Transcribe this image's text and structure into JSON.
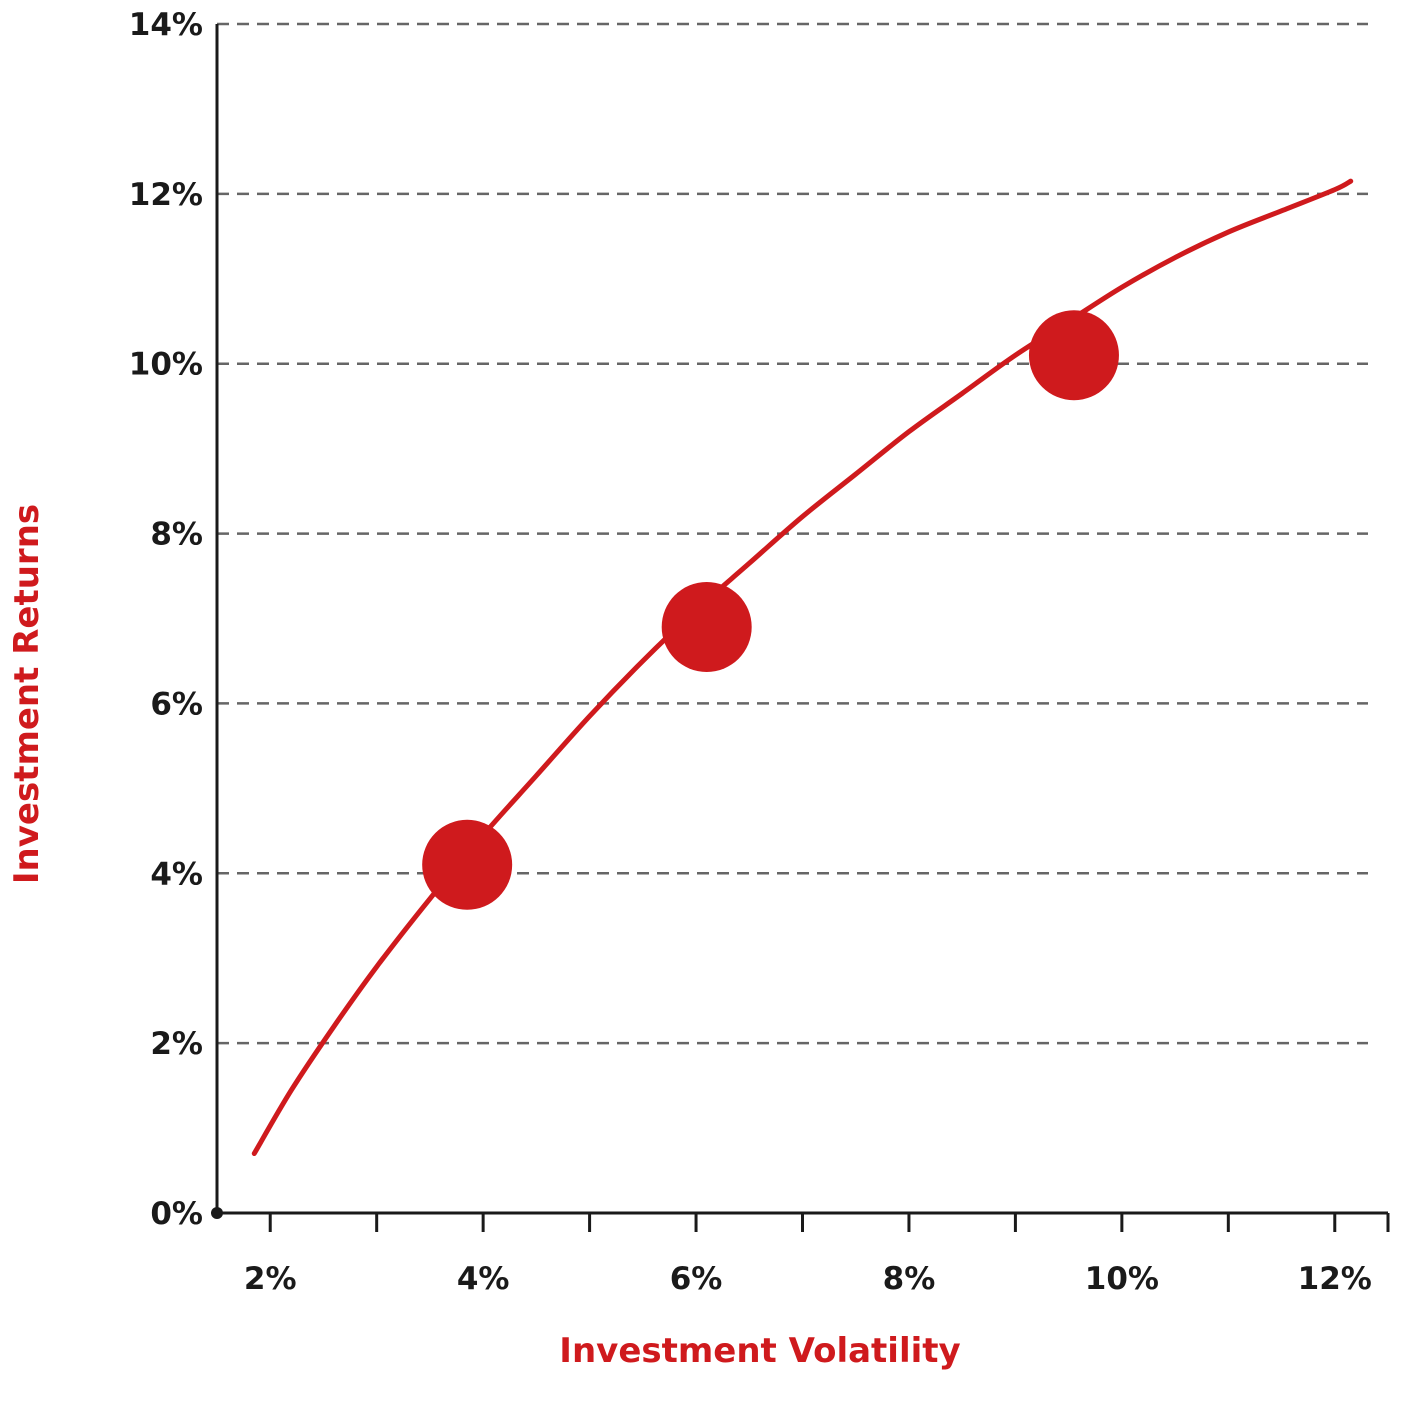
{
  "chart_data": {
    "type": "line",
    "xlabel": "Investment Volatility",
    "ylabel": "Investment Returns",
    "x_ticks": [
      "2%",
      "4%",
      "6%",
      "8%",
      "10%",
      "12%"
    ],
    "x_tick_values": [
      2,
      4,
      6,
      8,
      10,
      12
    ],
    "y_ticks": [
      "0%",
      "2%",
      "4%",
      "6%",
      "8%",
      "10%",
      "12%",
      "14%"
    ],
    "y_tick_values": [
      0,
      2,
      4,
      6,
      8,
      10,
      12,
      14
    ],
    "xlim": [
      1.5,
      12.5
    ],
    "ylim": [
      0,
      14
    ],
    "grid": "horizontal-dashed",
    "series": [
      {
        "color": "#cf1a1d",
        "x": [
          1.85,
          2.2,
          2.6,
          3.0,
          3.5,
          4.0,
          4.5,
          5.0,
          5.5,
          6.0,
          6.5,
          7.0,
          7.5,
          8.0,
          8.5,
          9.0,
          9.5,
          10.0,
          10.5,
          11.0,
          11.5,
          12.0,
          12.15
        ],
        "y": [
          0.7,
          1.45,
          2.2,
          2.9,
          3.7,
          4.45,
          5.15,
          5.85,
          6.5,
          7.1,
          7.65,
          8.2,
          8.7,
          9.2,
          9.65,
          10.1,
          10.5,
          10.9,
          11.25,
          11.55,
          11.8,
          12.05,
          12.15
        ]
      }
    ],
    "highlighted_points": [
      {
        "x": 3.85,
        "y": 4.1
      },
      {
        "x": 6.1,
        "y": 6.9
      },
      {
        "x": 9.55,
        "y": 10.1
      }
    ],
    "colors": {
      "accent": "#cf1a1d",
      "grid": "#666666",
      "axis": "#1a1a1a",
      "tick_text": "#1a1a1a"
    }
  }
}
